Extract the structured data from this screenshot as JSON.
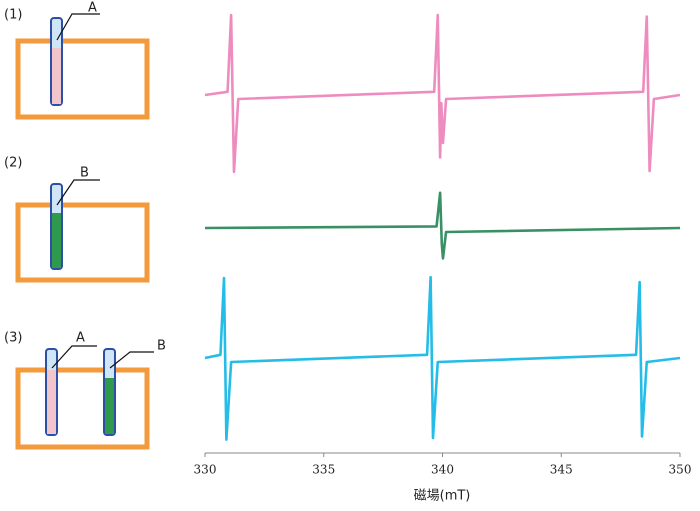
{
  "chart_data": {
    "type": "line",
    "xlabel": "磁場(mT)",
    "xlim": [
      330,
      350
    ],
    "xticks": [
      330,
      335,
      340,
      345,
      350
    ],
    "series": [
      {
        "name": "(1)",
        "color": "#ee8cc0",
        "x": [
          330,
          330.95,
          331.1,
          331.22,
          331.4,
          339.65,
          339.8,
          339.9,
          339.95,
          340.02,
          340.15,
          348.45,
          348.6,
          348.72,
          348.9,
          350
        ],
        "values": [
          0,
          0.04,
          1.0,
          -0.96,
          -0.05,
          0.04,
          1.0,
          -0.78,
          -0.1,
          -0.6,
          -0.05,
          0.04,
          0.98,
          -0.95,
          -0.05,
          0
        ]
      },
      {
        "name": "(2)",
        "color": "#3a9065",
        "x": [
          330,
          339.75,
          339.9,
          339.97,
          340.02,
          340.15,
          350
        ],
        "values": [
          0,
          0.02,
          0.44,
          -0.2,
          -0.38,
          -0.05,
          0
        ]
      },
      {
        "name": "(3)",
        "color": "#25bde8",
        "x": [
          330,
          330.65,
          330.8,
          330.9,
          331.1,
          339.35,
          339.5,
          339.6,
          339.8,
          348.15,
          348.3,
          348.4,
          348.6,
          350
        ],
        "values": [
          0,
          0.04,
          1.0,
          -1.02,
          -0.05,
          0.04,
          1.01,
          -1.0,
          -0.05,
          0.04,
          0.95,
          -0.98,
          -0.05,
          0
        ]
      }
    ]
  },
  "panels": [
    {
      "label": "(1)",
      "tubes": [
        "A"
      ]
    },
    {
      "label": "(2)",
      "tubes": [
        "B"
      ]
    },
    {
      "label": "(3)",
      "tubes": [
        "A",
        "B"
      ]
    }
  ]
}
